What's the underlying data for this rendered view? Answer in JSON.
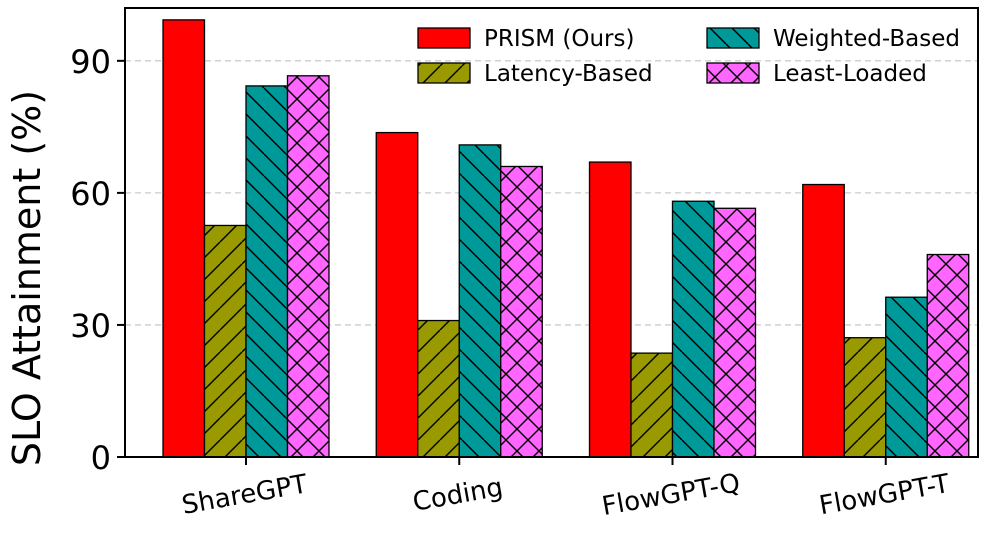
{
  "chart_data": {
    "type": "bar",
    "title": "",
    "xlabel": "",
    "ylabel": "SLO Attainment (%)",
    "ylim": [
      0,
      102
    ],
    "yticks": [
      0,
      30,
      60,
      90
    ],
    "grid": "horizontal dashed",
    "legend_position": "top-right",
    "categories": [
      "ShareGPT",
      "Coding",
      "FlowGPT-Q",
      "FlowGPT-T"
    ],
    "series": [
      {
        "name": "PRISM (Ours)",
        "color": "#ff0000",
        "hatch": "none",
        "values": [
          99.3,
          73.7,
          67.0,
          61.9
        ]
      },
      {
        "name": "Latency-Based",
        "color": "#999900",
        "hatch": "forward-diagonal",
        "values": [
          52.6,
          31.0,
          23.6,
          27.1
        ]
      },
      {
        "name": "Weighted-Based",
        "color": "#009999",
        "hatch": "back-diagonal",
        "values": [
          84.3,
          70.9,
          58.1,
          36.3
        ]
      },
      {
        "name": "Least-Loaded",
        "color": "#ff66ff",
        "hatch": "cross",
        "values": [
          86.6,
          66.0,
          56.5,
          46.0
        ]
      }
    ]
  }
}
